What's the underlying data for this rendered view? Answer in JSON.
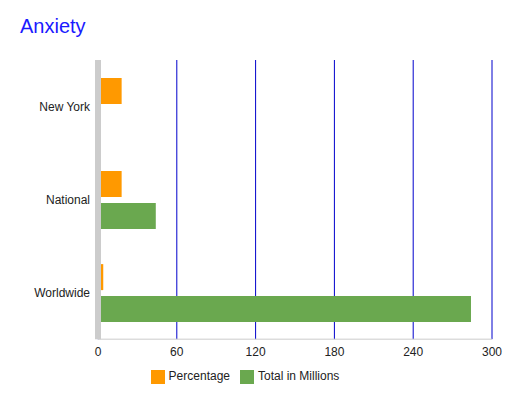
{
  "chart_data": {
    "type": "bar",
    "title": "Anxiety",
    "orientation": "horizontal",
    "categories": [
      "New York",
      "National",
      "Worldwide"
    ],
    "series": [
      {
        "name": "Percentage",
        "color": "#ff9900",
        "values": [
          18,
          18,
          4
        ]
      },
      {
        "name": "Total in Millions",
        "color": "#6aa84f",
        "values": [
          2,
          44,
          284
        ]
      }
    ],
    "xlim": [
      0,
      300
    ],
    "xticks": [
      0,
      60,
      120,
      180,
      240,
      300
    ],
    "grid": true,
    "legend": "bottom"
  }
}
